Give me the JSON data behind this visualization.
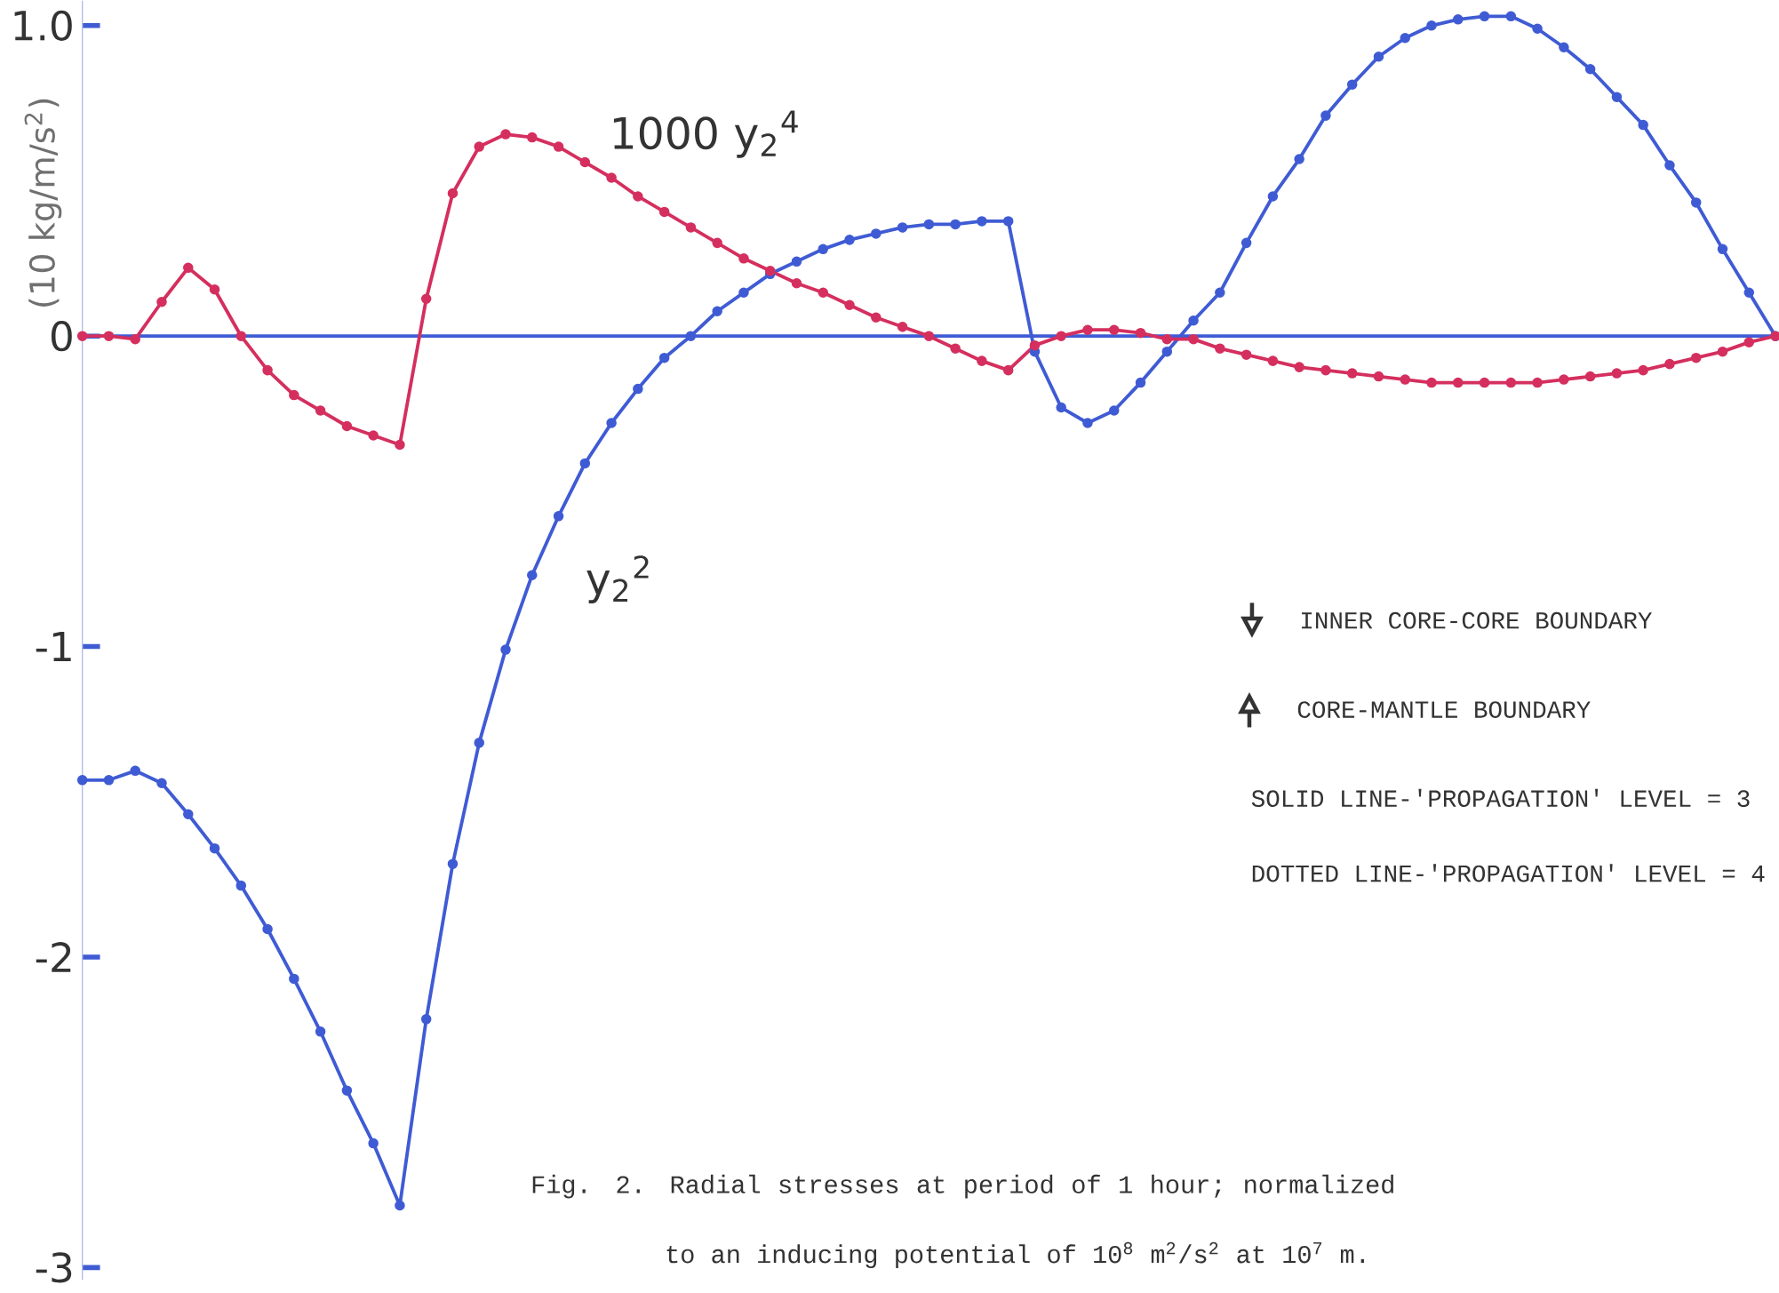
{
  "chart_data": {
    "type": "line",
    "ylabel": "(10 kg/m/s$^{2}$)",
    "categories": [
      null,
      null,
      null,
      null,
      null,
      null,
      null,
      null,
      null,
      null,
      null,
      null,
      null,
      null,
      null,
      null,
      null,
      null,
      null,
      null,
      null,
      null,
      null,
      null,
      null,
      null,
      null,
      null,
      null,
      null,
      null,
      null,
      null,
      null,
      null,
      null,
      null,
      null,
      null,
      null,
      null,
      null,
      null,
      null,
      null,
      null,
      null,
      null,
      null,
      null,
      null,
      null,
      null,
      null,
      null,
      null,
      null,
      null,
      null,
      null,
      null,
      null,
      null,
      null,
      null
    ],
    "series": [
      {
        "name": "y$_{2}$$^{2}$",
        "color": "#3f5bd4",
        "values": [
          -1.43,
          -1.43,
          -1.4,
          -1.44,
          -1.54,
          -1.65,
          -1.77,
          -1.91,
          -2.07,
          -2.24,
          -2.43,
          -2.6,
          -2.8,
          -2.2,
          -1.7,
          -1.31,
          -1.01,
          -0.77,
          -0.58,
          -0.41,
          -0.28,
          -0.17,
          -0.07,
          0.0,
          0.08,
          0.14,
          0.2,
          0.24,
          0.28,
          0.31,
          0.33,
          0.35,
          0.36,
          0.36,
          0.37,
          0.37,
          -0.05,
          -0.23,
          -0.28,
          -0.24,
          -0.15,
          -0.05,
          0.05,
          0.14,
          0.3,
          0.45,
          0.57,
          0.71,
          0.81,
          0.9,
          0.96,
          1.0,
          1.02,
          1.03,
          1.03,
          0.99,
          0.93,
          0.86,
          0.77,
          0.68,
          0.55,
          0.43,
          0.28,
          0.14,
          0
        ]
      },
      {
        "name": "1000 y$_{2}$$^{4}$",
        "color": "#d42f5e",
        "values": [
          0,
          0,
          -0.01,
          0.11,
          0.22,
          0.15,
          0.0,
          -0.11,
          -0.19,
          -0.24,
          -0.29,
          -0.32,
          -0.35,
          0.12,
          0.46,
          0.61,
          0.65,
          0.64,
          0.61,
          0.56,
          0.51,
          0.45,
          0.4,
          0.35,
          0.3,
          0.25,
          0.21,
          0.17,
          0.14,
          0.1,
          0.06,
          0.03,
          0.0,
          -0.04,
          -0.08,
          -0.11,
          -0.03,
          0.0,
          0.02,
          0.02,
          0.01,
          -0.01,
          -0.01,
          -0.04,
          -0.06,
          -0.08,
          -0.1,
          -0.11,
          -0.12,
          -0.13,
          -0.14,
          -0.15,
          -0.15,
          -0.15,
          -0.15,
          -0.15,
          -0.14,
          -0.13,
          -0.12,
          -0.11,
          -0.09,
          -0.07,
          -0.05,
          -0.02,
          0
        ]
      }
    ],
    "ylim": [
      -3.04,
      1.08
    ],
    "yticks": [
      {
        "value": 1,
        "label": "1.0"
      },
      0,
      -1,
      -2,
      -3
    ],
    "marker": "circle",
    "line_style": "solid",
    "ref_lines": [
      {
        "axis": "y",
        "value": 0,
        "color": "#3f5bd4"
      }
    ],
    "annotations": [
      "INNER CORE-CORE BOUNDARY",
      "CORE-MANTLE BOUNDARY",
      "SOLID LINE-'PROPAGATION' LEVEL = 3",
      "DOTTED LINE-'PROPAGATION' LEVEL = 4",
      "Fig. 2. Radial stresses at period of 1 hour; normalized to an inducing potential of 10$^{8}$ m$^{2}$/s$^{2}$ at 10$^{7}$ m."
    ]
  }
}
